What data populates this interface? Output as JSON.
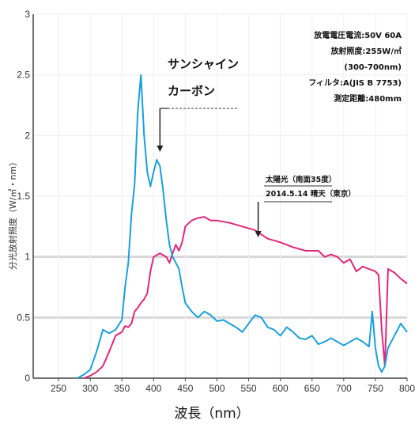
{
  "chart_data": {
    "type": "line",
    "xlabel": "波長（nm）",
    "ylabel": "分光放射照度（W/㎡・nm）",
    "xlim": [
      210,
      800
    ],
    "ylim": [
      0,
      3
    ],
    "x_ticks": [
      250,
      300,
      350,
      400,
      450,
      500,
      550,
      600,
      650,
      700,
      750,
      800
    ],
    "x_tick_labels": [
      "250",
      "300",
      "350",
      "400",
      "450",
      "500",
      "550",
      "600",
      "650",
      "700",
      "750",
      "800"
    ],
    "y_ticks": [
      0,
      0.5,
      1,
      1.5,
      2,
      2.5,
      3
    ],
    "y_tick_labels": [
      "0",
      "0.5",
      "1",
      "1.5",
      "2",
      "2.5",
      "3"
    ],
    "grid": true,
    "series": [
      {
        "name": "サンシャインカーボン",
        "color": "#1aa0dc",
        "x": [
          280,
          290,
          300,
          310,
          320,
          330,
          340,
          350,
          355,
          360,
          365,
          370,
          375,
          380,
          385,
          390,
          395,
          400,
          405,
          410,
          415,
          420,
          425,
          430,
          435,
          440,
          445,
          450,
          460,
          470,
          480,
          490,
          500,
          510,
          520,
          530,
          540,
          550,
          560,
          570,
          580,
          590,
          600,
          610,
          620,
          630,
          640,
          650,
          660,
          670,
          680,
          690,
          700,
          710,
          720,
          730,
          740,
          745,
          750,
          755,
          760,
          765,
          770,
          780,
          790,
          800
        ],
        "y": [
          0.0,
          0.03,
          0.07,
          0.22,
          0.4,
          0.37,
          0.4,
          0.48,
          0.75,
          0.95,
          1.35,
          1.6,
          2.2,
          2.5,
          2.0,
          1.7,
          1.58,
          1.7,
          1.8,
          1.75,
          1.55,
          1.3,
          1.1,
          1.0,
          0.95,
          0.9,
          0.75,
          0.62,
          0.55,
          0.5,
          0.55,
          0.52,
          0.47,
          0.48,
          0.45,
          0.42,
          0.38,
          0.45,
          0.52,
          0.5,
          0.42,
          0.4,
          0.35,
          0.42,
          0.38,
          0.33,
          0.32,
          0.35,
          0.28,
          0.3,
          0.33,
          0.3,
          0.27,
          0.3,
          0.33,
          0.3,
          0.26,
          0.55,
          0.25,
          0.1,
          0.05,
          0.1,
          0.25,
          0.35,
          0.45,
          0.38
        ]
      },
      {
        "name": "太陽光（南面35度）",
        "color": "#e0287a",
        "x": [
          290,
          300,
          310,
          320,
          330,
          340,
          350,
          355,
          360,
          365,
          370,
          375,
          380,
          385,
          390,
          395,
          400,
          410,
          420,
          425,
          430,
          435,
          440,
          445,
          450,
          460,
          470,
          480,
          490,
          500,
          520,
          540,
          560,
          580,
          600,
          620,
          640,
          650,
          660,
          670,
          680,
          690,
          700,
          710,
          720,
          730,
          740,
          750,
          755,
          760,
          765,
          770,
          780,
          790,
          800
        ],
        "y": [
          0.0,
          0.02,
          0.05,
          0.1,
          0.22,
          0.35,
          0.38,
          0.43,
          0.42,
          0.45,
          0.55,
          0.58,
          0.62,
          0.65,
          0.7,
          0.88,
          1.0,
          1.03,
          1.0,
          0.95,
          1.03,
          1.1,
          1.05,
          1.12,
          1.25,
          1.3,
          1.32,
          1.33,
          1.3,
          1.3,
          1.28,
          1.25,
          1.22,
          1.15,
          1.12,
          1.08,
          1.05,
          1.05,
          1.05,
          1.0,
          1.02,
          1.0,
          0.95,
          0.98,
          0.88,
          0.92,
          0.9,
          0.88,
          0.85,
          0.4,
          0.1,
          0.9,
          0.87,
          0.82,
          0.78
        ]
      }
    ],
    "annotations": {
      "carbon_label_1": "サンシャイン",
      "carbon_label_2": "カーボン",
      "sun_label_1": "太陽光（南面35度）",
      "sun_label_2": "2014.5.14 晴天（東京）",
      "info_lines": [
        "放電電圧電流:50V 60A",
        "放射照度:255W/㎡",
        "(300-700nm)",
        "フィルタ:A(JIS B 7753)",
        "測定距離:480mm"
      ]
    },
    "arrows": [
      {
        "target": "サンシャインカーボン",
        "x": 410
      },
      {
        "target": "太陽光（南面35度）",
        "x": 565
      }
    ]
  }
}
